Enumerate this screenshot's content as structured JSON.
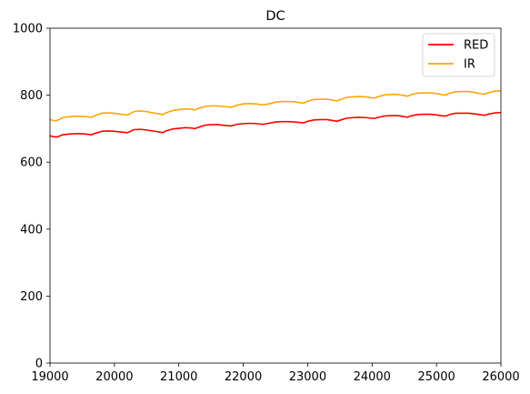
{
  "chart_data": {
    "type": "line",
    "title": "DC",
    "xlabel": "",
    "ylabel": "",
    "xlim": [
      19000,
      26000
    ],
    "ylim": [
      0,
      1000
    ],
    "xticks": [
      19000,
      20000,
      21000,
      22000,
      23000,
      24000,
      25000,
      26000
    ],
    "yticks": [
      0,
      200,
      400,
      600,
      800,
      1000
    ],
    "xtick_labels": [
      "19000",
      "20000",
      "21000",
      "22000",
      "23000",
      "24000",
      "25000",
      "26000"
    ],
    "ytick_labels": [
      "0",
      "200",
      "400",
      "600",
      "800",
      "1000"
    ],
    "grid": false,
    "legend": {
      "position": "top-right",
      "entries": [
        "RED",
        "IR"
      ]
    },
    "x": [
      19000,
      19050,
      19100,
      19150,
      19200,
      19300,
      19400,
      19500,
      19600,
      19650,
      19700,
      19800,
      19900,
      20000,
      20100,
      20200,
      20250,
      20300,
      20400,
      20500,
      20600,
      20700,
      20750,
      20800,
      20900,
      21000,
      21100,
      21200,
      21250,
      21300,
      21400,
      21500,
      21600,
      21700,
      21800,
      21850,
      21900,
      22000,
      22100,
      22200,
      22300,
      22400,
      22500,
      22600,
      22700,
      22800,
      22900,
      22950,
      23000,
      23100,
      23200,
      23300,
      23400,
      23450,
      23500,
      23600,
      23700,
      23800,
      23900,
      24000,
      24050,
      24100,
      24200,
      24300,
      24400,
      24500,
      24550,
      24600,
      24700,
      24800,
      24900,
      25000,
      25100,
      25150,
      25200,
      25300,
      25400,
      25500,
      25600,
      25700,
      25750,
      25800,
      25900,
      26000
    ],
    "series": [
      {
        "name": "RED",
        "color": "#ff0000",
        "values": [
          679,
          676,
          675,
          678,
          682,
          684,
          685,
          685,
          683,
          682,
          686,
          692,
          693,
          692,
          690,
          688,
          692,
          697,
          698,
          696,
          693,
          690,
          688,
          693,
          699,
          701,
          703,
          702,
          700,
          704,
          710,
          712,
          712,
          710,
          708,
          710,
          713,
          715,
          716,
          715,
          713,
          716,
          720,
          721,
          721,
          720,
          718,
          718,
          722,
          726,
          727,
          727,
          724,
          722,
          725,
          731,
          733,
          734,
          733,
          731,
          731,
          734,
          738,
          739,
          739,
          736,
          734,
          738,
          742,
          743,
          743,
          741,
          738,
          738,
          742,
          746,
          746,
          746,
          744,
          741,
          740,
          743,
          747,
          748
        ]
      },
      {
        "name": "IR",
        "color": "#ffa500",
        "values": [
          728,
          724,
          724,
          728,
          733,
          736,
          737,
          737,
          735,
          734,
          739,
          746,
          747,
          746,
          743,
          741,
          745,
          751,
          753,
          751,
          747,
          744,
          742,
          747,
          754,
          757,
          759,
          758,
          756,
          760,
          766,
          768,
          768,
          766,
          764,
          766,
          770,
          774,
          775,
          774,
          771,
          774,
          779,
          781,
          781,
          780,
          777,
          777,
          782,
          787,
          788,
          788,
          785,
          783,
          786,
          793,
          795,
          796,
          795,
          792,
          792,
          796,
          801,
          802,
          802,
          799,
          797,
          801,
          806,
          807,
          807,
          805,
          801,
          801,
          806,
          810,
          811,
          811,
          808,
          804,
          803,
          807,
          812,
          813
        ]
      }
    ]
  }
}
